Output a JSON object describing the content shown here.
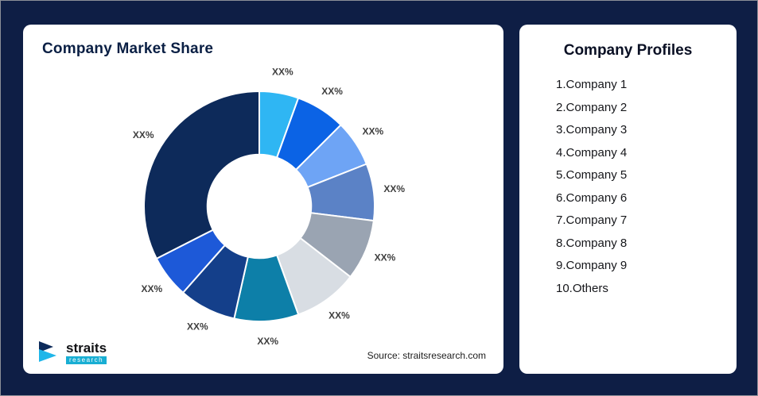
{
  "page": {
    "background": "#0e1e45"
  },
  "left_card": {
    "title": "Company Market Share",
    "source": "Source: straitsresearch.com",
    "logo": {
      "brand": "straits",
      "sub_brand": "research"
    }
  },
  "right_card": {
    "title": "Company Profiles",
    "items": [
      "1.Company 1",
      "2.Company 2",
      "3.Company 3",
      "4.Company 4",
      "5.Company 5",
      "6.Company 6",
      "7.Company 7",
      "8.Company 8",
      "9.Company 9",
      "10.Others"
    ]
  },
  "chart_data": {
    "type": "pie",
    "subtype": "donut",
    "title": "Company Market Share",
    "labels": [
      "XX%",
      "XX%",
      "XX%",
      "XX%",
      "XX%",
      "XX%",
      "XX%",
      "XX%",
      "XX%",
      "XX%"
    ],
    "values": [
      5.5,
      7,
      6.5,
      8,
      8.5,
      9,
      9,
      8,
      6,
      32.5
    ],
    "colors": [
      "#2fb6f3",
      "#0b63e5",
      "#6ea4f5",
      "#5b82c6",
      "#9aa4b2",
      "#d8dde3",
      "#0d7fa8",
      "#143f8a",
      "#1d59d8",
      "#0d2a5a"
    ],
    "start_angle_deg": -90,
    "direction": "clockwise",
    "inner_radius_ratio": 0.45,
    "legend": "none"
  }
}
